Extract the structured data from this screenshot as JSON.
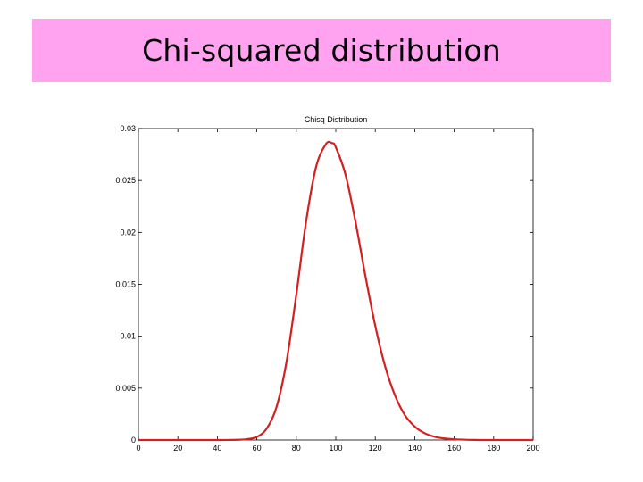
{
  "slide": {
    "title": "Chi-squared distribution",
    "banner_color": "#ffa3f0"
  },
  "chart_data": {
    "type": "line",
    "title": "Chisq Distribution",
    "xlabel": "",
    "ylabel": "",
    "xlim": [
      0,
      200
    ],
    "ylim": [
      0,
      0.03
    ],
    "xticks": [
      0,
      20,
      40,
      60,
      80,
      100,
      120,
      140,
      160,
      180,
      200
    ],
    "yticks": [
      0,
      0.005,
      0.01,
      0.015,
      0.02,
      0.025,
      0.03
    ],
    "xtick_labels": [
      "0",
      "20",
      "40",
      "60",
      "80",
      "100",
      "120",
      "140",
      "160",
      "180",
      "200"
    ],
    "ytick_labels": [
      "0",
      "0.005",
      "0.01",
      "0.015",
      "0.02",
      "0.025",
      "0.03"
    ],
    "grid": false,
    "series": [
      {
        "color": "#d42020",
        "x": [
          0,
          10,
          20,
          30,
          40,
          50,
          55,
          60,
          65,
          70,
          75,
          80,
          85,
          90,
          95,
          98,
          100,
          105,
          110,
          115,
          120,
          125,
          130,
          135,
          140,
          145,
          150,
          155,
          160,
          170,
          180,
          190,
          200
        ],
        "y": [
          0,
          0,
          0,
          0,
          0,
          2e-05,
          8e-05,
          0.0003,
          0.0011,
          0.0032,
          0.0075,
          0.014,
          0.0211,
          0.0263,
          0.0285,
          0.0286,
          0.0282,
          0.0255,
          0.021,
          0.0158,
          0.011,
          0.0071,
          0.0043,
          0.0024,
          0.0013,
          0.00066,
          0.00032,
          0.00015,
          7e-05,
          1e-05,
          0,
          0,
          0
        ]
      }
    ]
  }
}
